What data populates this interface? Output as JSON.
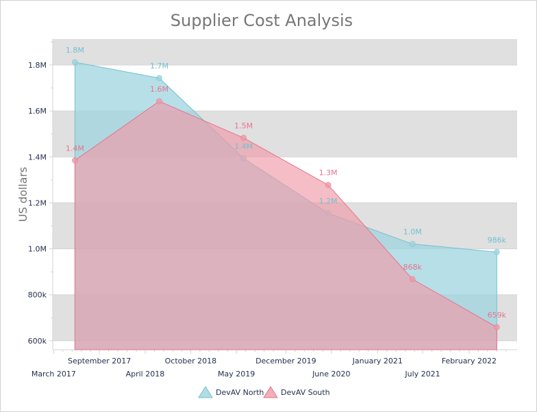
{
  "chart_data": {
    "type": "area",
    "title": "Supplier Cost Analysis",
    "xlabel": "",
    "ylabel": "US dollars",
    "ylim": [
      561000,
      1913000
    ],
    "xlim": [
      "2017-02-25",
      "2022-08-28"
    ],
    "grid": "alternating horizontal bands",
    "legend_position": "bottom-center",
    "y_ticks": [
      {
        "value": 600000,
        "label": "600k"
      },
      {
        "value": 800000,
        "label": "800k"
      },
      {
        "value": 1000000,
        "label": "1.0M"
      },
      {
        "value": 1200000,
        "label": "1.2M"
      },
      {
        "value": 1400000,
        "label": "1.4M"
      },
      {
        "value": 1600000,
        "label": "1.6M"
      },
      {
        "value": 1800000,
        "label": "1.8M"
      }
    ],
    "x_ticks": [
      {
        "date": "2017-03-01",
        "label": "March 2017"
      },
      {
        "date": "2017-09-15",
        "label": "September 2017"
      },
      {
        "date": "2018-04-01",
        "label": "April 2018"
      },
      {
        "date": "2018-10-15",
        "label": "October 2018"
      },
      {
        "date": "2019-05-01",
        "label": "May 2019"
      },
      {
        "date": "2019-12-01",
        "label": "December 2019"
      },
      {
        "date": "2020-06-15",
        "label": "June 2020"
      },
      {
        "date": "2021-01-01",
        "label": "January 2021"
      },
      {
        "date": "2021-07-15",
        "label": "July 2021"
      },
      {
        "date": "2022-02-01",
        "label": "February 2022"
      }
    ],
    "x": [
      "2017-06-01",
      "2018-06-01",
      "2019-06-01",
      "2020-06-01",
      "2021-06-01",
      "2022-06-01"
    ],
    "series": [
      {
        "name": "DevAV North",
        "color": "#6fc0d0",
        "fill": "#9fd4df",
        "values": [
          1812000,
          1743000,
          1394000,
          1155000,
          1021000,
          986000
        ],
        "labels": [
          "1.8M",
          "1.7M",
          "1.4M",
          "1.2M",
          "1.0M",
          "986k"
        ]
      },
      {
        "name": "DevAV South",
        "color": "#e8738a",
        "fill": "#ef9aa8",
        "values": [
          1385000,
          1642000,
          1483000,
          1278000,
          868000,
          659000
        ],
        "labels": [
          "1.4M",
          "1.6M",
          "1.5M",
          "1.3M",
          "868k",
          "659k"
        ]
      }
    ]
  }
}
